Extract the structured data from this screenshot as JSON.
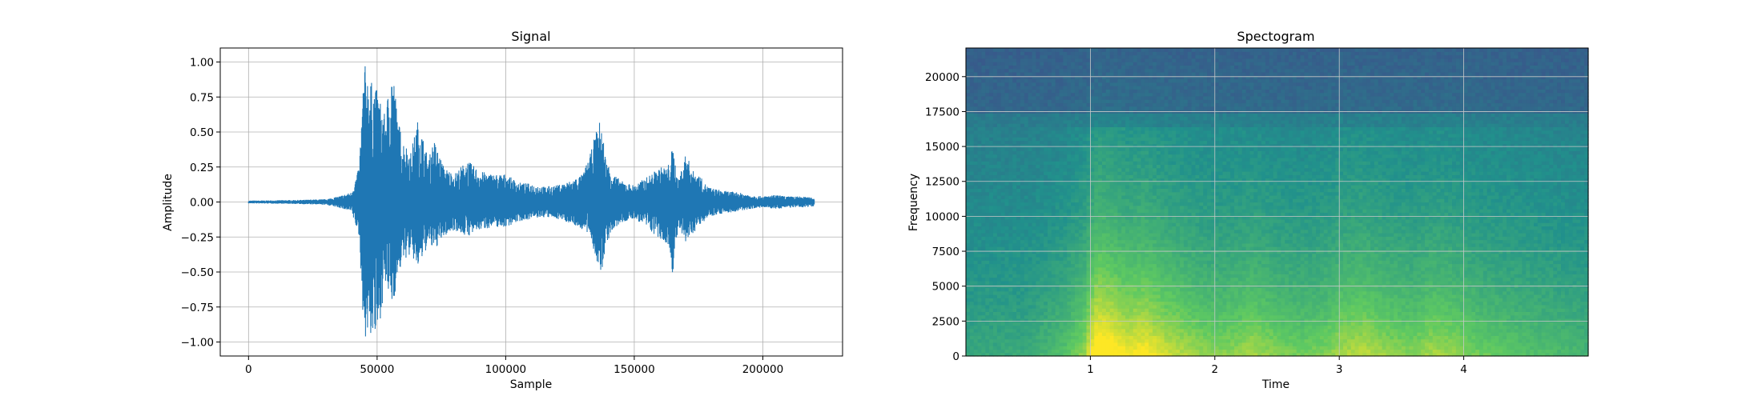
{
  "chart_data": [
    {
      "type": "line",
      "title": "Signal",
      "xlabel": "Sample",
      "ylabel": "Amplitude",
      "xlim": [
        -11000,
        231000
      ],
      "ylim": [
        -1.1,
        1.1
      ],
      "x_ticks": [
        0,
        50000,
        100000,
        150000,
        200000
      ],
      "x_tick_labels": [
        "0",
        "50000",
        "100000",
        "150000",
        "200000"
      ],
      "y_ticks": [
        1.0,
        0.75,
        0.5,
        0.25,
        0.0,
        -0.25,
        -0.5,
        -0.75,
        -1.0
      ],
      "y_tick_labels": [
        "1.00",
        "0.75",
        "0.50",
        "0.25",
        "0.00",
        "−0.25",
        "−0.50",
        "−0.75",
        "−1.00"
      ],
      "grid": true,
      "color": "#1f77b4",
      "series": [
        {
          "x": [
            0,
            10000,
            20000,
            30000,
            35000,
            40000,
            43000,
            45000,
            47000,
            50000,
            53000,
            56000,
            58000,
            60000,
            63000,
            66000,
            70000,
            72000,
            76000,
            80000,
            85000,
            90000,
            95000,
            100000,
            105000,
            110000,
            115000,
            120000,
            125000,
            128000,
            130000,
            133000,
            135000,
            137000,
            139000,
            142000,
            145000,
            150000,
            155000,
            160000,
            163000,
            165000,
            167000,
            170000,
            173000,
            175000,
            178000,
            180000,
            185000,
            190000,
            195000,
            200000,
            205000,
            210000,
            215000,
            220000
          ],
          "y_max": [
            0.01,
            0.012,
            0.015,
            0.02,
            0.04,
            0.07,
            0.25,
            1.0,
            0.88,
            0.8,
            0.62,
            1.0,
            0.6,
            0.45,
            0.35,
            0.6,
            0.3,
            0.45,
            0.25,
            0.2,
            0.3,
            0.22,
            0.2,
            0.2,
            0.14,
            0.13,
            0.11,
            0.12,
            0.15,
            0.18,
            0.2,
            0.35,
            0.5,
            0.6,
            0.3,
            0.2,
            0.15,
            0.12,
            0.18,
            0.25,
            0.25,
            0.4,
            0.15,
            0.35,
            0.22,
            0.2,
            0.12,
            0.1,
            0.08,
            0.07,
            0.05,
            0.04,
            0.05,
            0.04,
            0.04,
            0.03
          ],
          "y_min": [
            -0.01,
            -0.012,
            -0.015,
            -0.02,
            -0.04,
            -0.07,
            -0.25,
            -1.0,
            -0.95,
            -1.0,
            -0.6,
            -0.75,
            -0.55,
            -0.42,
            -0.38,
            -0.48,
            -0.3,
            -0.35,
            -0.25,
            -0.2,
            -0.25,
            -0.2,
            -0.18,
            -0.18,
            -0.14,
            -0.12,
            -0.11,
            -0.12,
            -0.15,
            -0.18,
            -0.2,
            -0.25,
            -0.4,
            -0.56,
            -0.3,
            -0.2,
            -0.15,
            -0.12,
            -0.18,
            -0.28,
            -0.3,
            -0.52,
            -0.2,
            -0.3,
            -0.22,
            -0.18,
            -0.12,
            -0.1,
            -0.08,
            -0.07,
            -0.05,
            -0.04,
            -0.05,
            -0.04,
            -0.04,
            -0.03
          ]
        }
      ]
    },
    {
      "type": "heatmap",
      "title": "Spectogram",
      "xlabel": "Time",
      "ylabel": "Frequency",
      "xlim": [
        0,
        5
      ],
      "ylim": [
        0,
        22050
      ],
      "x_ticks": [
        1,
        2,
        3,
        4
      ],
      "x_tick_labels": [
        "1",
        "2",
        "3",
        "4"
      ],
      "y_ticks": [
        0,
        2500,
        5000,
        7500,
        10000,
        12500,
        15000,
        17500,
        20000
      ],
      "y_tick_labels": [
        "0",
        "2500",
        "5000",
        "7500",
        "10000",
        "12500",
        "15000",
        "17500",
        "20000"
      ],
      "grid": true,
      "colormap": "viridis",
      "time_bands": [
        0,
        0.5,
        0.8,
        0.95,
        1.05,
        1.15,
        1.3,
        1.45,
        1.6,
        1.8,
        2.0,
        2.2,
        2.3,
        2.5,
        2.7,
        2.9,
        3.0,
        3.2,
        3.4,
        3.6,
        3.75,
        3.9,
        4.1,
        4.3,
        4.5,
        4.8,
        5.0
      ],
      "energy": [
        0.15,
        0.18,
        0.35,
        0.55,
        1.0,
        0.95,
        0.8,
        0.85,
        0.7,
        0.6,
        0.5,
        0.55,
        0.6,
        0.5,
        0.45,
        0.5,
        0.6,
        0.65,
        0.55,
        0.5,
        0.6,
        0.55,
        0.45,
        0.4,
        0.35,
        0.3,
        0.25
      ]
    }
  ]
}
